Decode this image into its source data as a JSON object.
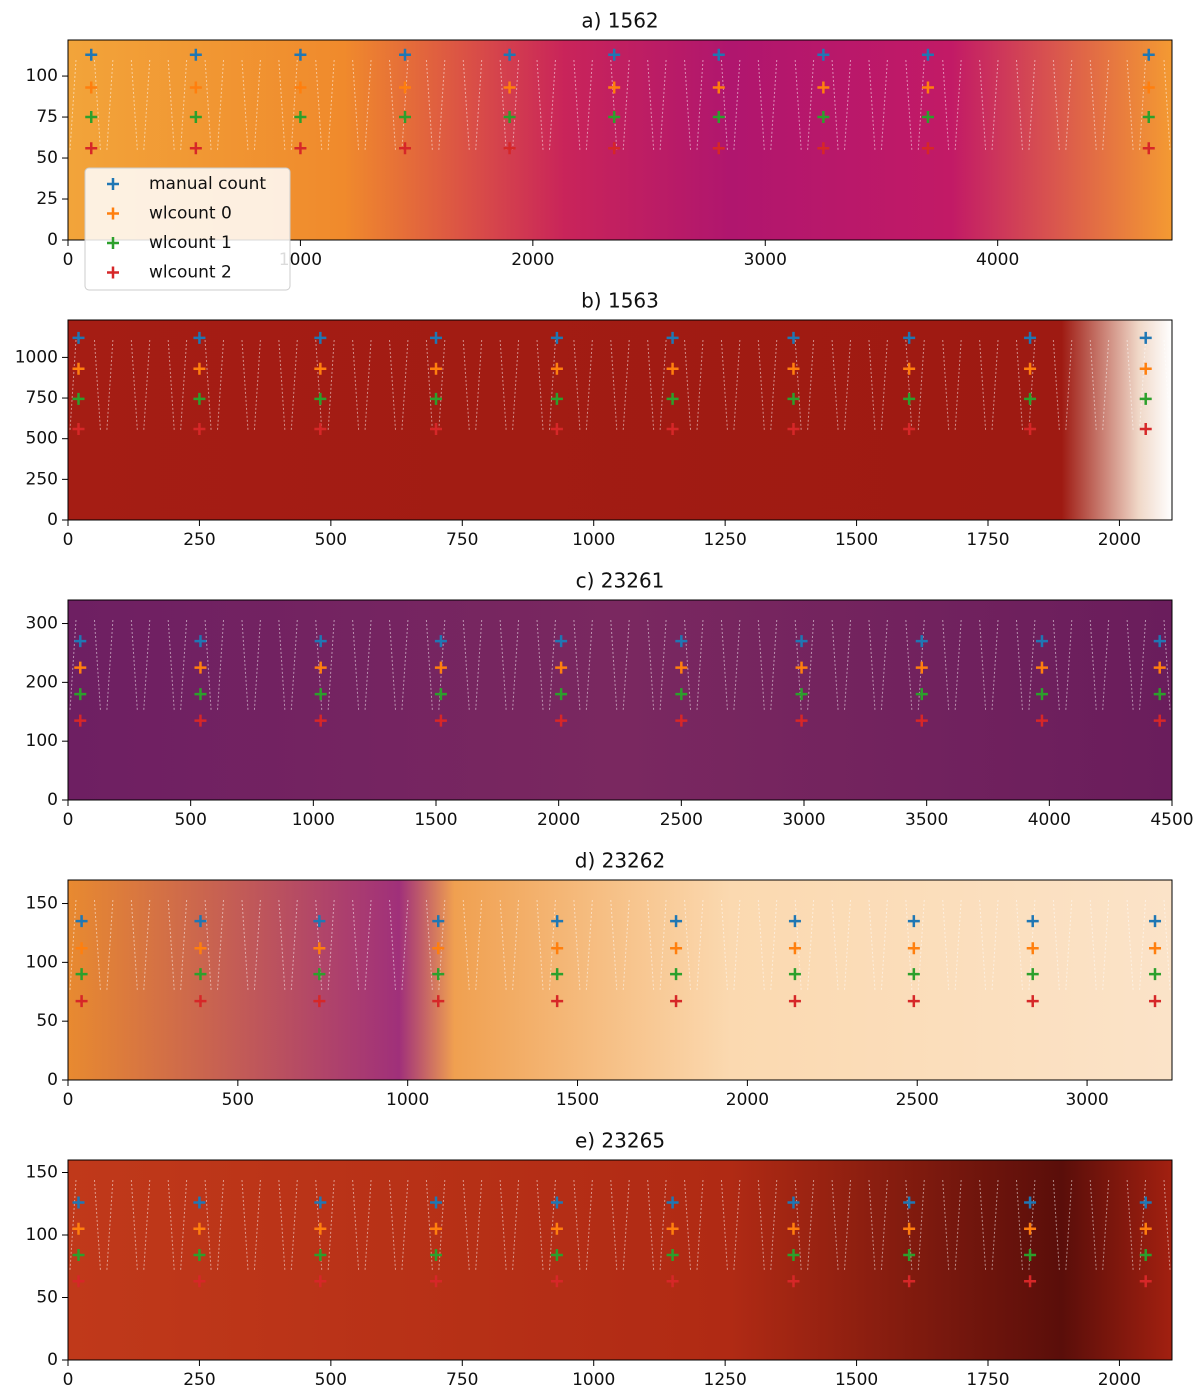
{
  "chart_data": [
    {
      "type": "scatter",
      "title": "a) 1562",
      "xlim": [
        0,
        4750
      ],
      "ylim": [
        0,
        122
      ],
      "xticks": [
        0,
        1000,
        2000,
        3000,
        4000
      ],
      "yticks": [
        0,
        25,
        50,
        75,
        100
      ],
      "legend": "lower left",
      "x": [
        100,
        550,
        1000,
        1450,
        1900,
        2350,
        2800,
        3250,
        3700,
        4650
      ],
      "series": [
        {
          "name": "manual count",
          "color": "#1f77b4",
          "values": [
            113,
            113,
            113,
            113,
            113,
            113,
            113,
            113,
            113,
            113
          ]
        },
        {
          "name": "wlcount 0",
          "color": "#ff7f0e",
          "values": [
            93,
            93,
            93,
            93,
            93,
            93,
            93,
            93,
            93,
            93
          ]
        },
        {
          "name": "wlcount 1",
          "color": "#2ca02c",
          "values": [
            75,
            75,
            75,
            75,
            75,
            75,
            75,
            75,
            75,
            75
          ]
        },
        {
          "name": "wlcount 2",
          "color": "#d62728",
          "values": [
            56,
            56,
            56,
            56,
            56,
            56,
            56,
            56,
            56,
            56
          ]
        }
      ]
    },
    {
      "type": "scatter",
      "title": "b) 1563",
      "xlim": [
        0,
        2100
      ],
      "ylim": [
        0,
        1230
      ],
      "xticks": [
        0,
        250,
        500,
        750,
        1000,
        1250,
        1500,
        1750,
        2000
      ],
      "yticks": [
        0,
        250,
        500,
        750,
        1000
      ],
      "x": [
        20,
        250,
        480,
        700,
        930,
        1150,
        1380,
        1600,
        1830,
        2050
      ],
      "series": [
        {
          "name": "manual count",
          "color": "#1f77b4",
          "values": [
            1120,
            1120,
            1120,
            1120,
            1120,
            1120,
            1120,
            1120,
            1120,
            1120
          ]
        },
        {
          "name": "wlcount 0",
          "color": "#ff7f0e",
          "values": [
            930,
            930,
            930,
            930,
            930,
            930,
            930,
            930,
            930,
            930
          ]
        },
        {
          "name": "wlcount 1",
          "color": "#2ca02c",
          "values": [
            745,
            745,
            745,
            745,
            745,
            745,
            745,
            745,
            745,
            745
          ]
        },
        {
          "name": "wlcount 2",
          "color": "#d62728",
          "values": [
            560,
            560,
            560,
            560,
            560,
            560,
            560,
            560,
            560,
            560
          ]
        }
      ]
    },
    {
      "type": "scatter",
      "title": "c) 23261",
      "xlim": [
        0,
        4500
      ],
      "ylim": [
        0,
        340
      ],
      "xticks": [
        0,
        500,
        1000,
        1500,
        2000,
        2500,
        3000,
        3500,
        4000,
        4500
      ],
      "yticks": [
        0,
        100,
        200,
        300
      ],
      "x": [
        50,
        540,
        1030,
        1520,
        2010,
        2500,
        2990,
        3480,
        3970,
        4450
      ],
      "series": [
        {
          "name": "manual count",
          "color": "#1f77b4",
          "values": [
            270,
            270,
            270,
            270,
            270,
            270,
            270,
            270,
            270,
            270
          ]
        },
        {
          "name": "wlcount 0",
          "color": "#ff7f0e",
          "values": [
            225,
            225,
            225,
            225,
            225,
            225,
            225,
            225,
            225,
            225
          ]
        },
        {
          "name": "wlcount 1",
          "color": "#2ca02c",
          "values": [
            180,
            180,
            180,
            180,
            180,
            180,
            180,
            180,
            180,
            180
          ]
        },
        {
          "name": "wlcount 2",
          "color": "#d62728",
          "values": [
            135,
            135,
            135,
            135,
            135,
            135,
            135,
            135,
            135,
            135
          ]
        }
      ]
    },
    {
      "type": "scatter",
      "title": "d) 23262",
      "xlim": [
        0,
        3250
      ],
      "ylim": [
        0,
        170
      ],
      "xticks": [
        0,
        500,
        1000,
        1500,
        2000,
        2500,
        3000
      ],
      "yticks": [
        0,
        50,
        100,
        150
      ],
      "x": [
        40,
        390,
        740,
        1090,
        1440,
        1790,
        2140,
        2490,
        2840,
        3200
      ],
      "series": [
        {
          "name": "manual count",
          "color": "#1f77b4",
          "values": [
            135,
            135,
            135,
            135,
            135,
            135,
            135,
            135,
            135,
            135
          ]
        },
        {
          "name": "wlcount 0",
          "color": "#ff7f0e",
          "values": [
            112,
            112,
            112,
            112,
            112,
            112,
            112,
            112,
            112,
            112
          ]
        },
        {
          "name": "wlcount 1",
          "color": "#2ca02c",
          "values": [
            90,
            90,
            90,
            90,
            90,
            90,
            90,
            90,
            90,
            90
          ]
        },
        {
          "name": "wlcount 2",
          "color": "#d62728",
          "values": [
            67,
            67,
            67,
            67,
            67,
            67,
            67,
            67,
            67,
            67
          ]
        }
      ]
    },
    {
      "type": "scatter",
      "title": "e) 23265",
      "xlim": [
        0,
        2100
      ],
      "ylim": [
        0,
        160
      ],
      "xticks": [
        0,
        250,
        500,
        750,
        1000,
        1250,
        1500,
        1750,
        2000
      ],
      "yticks": [
        0,
        50,
        100,
        150
      ],
      "x": [
        20,
        250,
        480,
        700,
        930,
        1150,
        1380,
        1600,
        1830,
        2050
      ],
      "series": [
        {
          "name": "manual count",
          "color": "#1f77b4",
          "values": [
            126,
            126,
            126,
            126,
            126,
            126,
            126,
            126,
            126,
            126
          ]
        },
        {
          "name": "wlcount 0",
          "color": "#ff7f0e",
          "values": [
            105,
            105,
            105,
            105,
            105,
            105,
            105,
            105,
            105,
            105
          ]
        },
        {
          "name": "wlcount 1",
          "color": "#2ca02c",
          "values": [
            84,
            84,
            84,
            84,
            84,
            84,
            84,
            84,
            84,
            84
          ]
        },
        {
          "name": "wlcount 2",
          "color": "#d62728",
          "values": [
            63,
            63,
            63,
            63,
            63,
            63,
            63,
            63,
            63,
            63
          ]
        }
      ]
    }
  ]
}
